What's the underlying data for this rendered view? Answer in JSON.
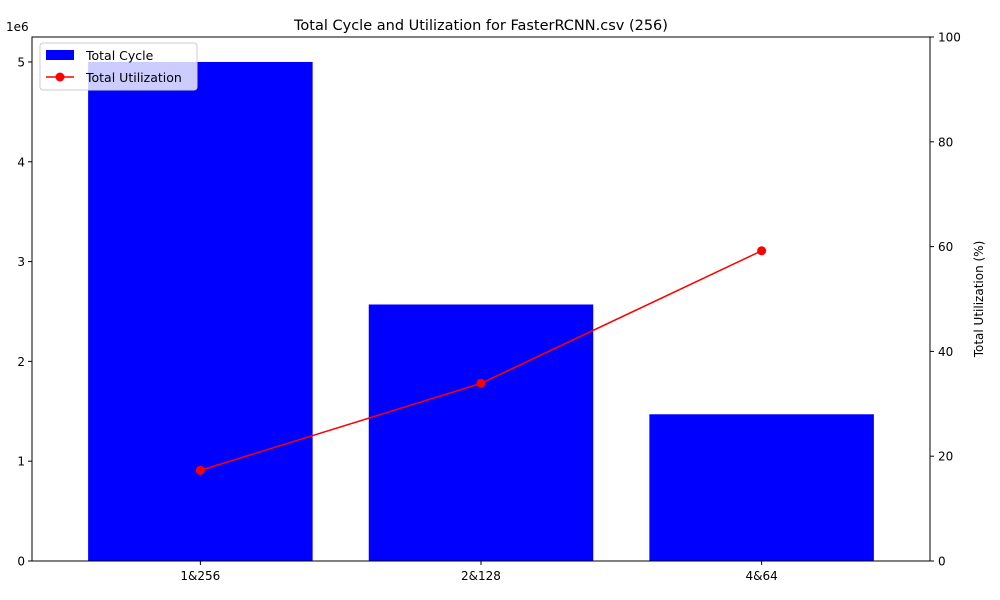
{
  "chart_data": {
    "type": "bar",
    "title": "Total Cycle and Utilization for FasterRCNN.csv (256)",
    "categories": [
      "1&256",
      "2&128",
      "4&64"
    ],
    "series": [
      {
        "name": "Total Cycle",
        "type": "bar",
        "axis": "left",
        "color": "#0000ff",
        "values": [
          5000000,
          2570000,
          1470000
        ]
      },
      {
        "name": "Total Utilization",
        "type": "line",
        "axis": "right",
        "color": "#ff0000",
        "marker": "circle",
        "values": [
          17.3,
          33.9,
          59.2
        ]
      }
    ],
    "left_axis": {
      "label": "",
      "ylim": [
        0,
        5250000
      ],
      "ticks": [
        0,
        1000000,
        2000000,
        3000000,
        4000000,
        5000000
      ],
      "tick_labels": [
        "0",
        "1",
        "2",
        "3",
        "4",
        "5"
      ],
      "offset_text": "1e6"
    },
    "right_axis": {
      "label": "Total Utilization (%)",
      "ylim": [
        0,
        100
      ],
      "ticks": [
        0,
        20,
        40,
        60,
        80,
        100
      ],
      "tick_labels": [
        "0",
        "20",
        "40",
        "60",
        "80",
        "100"
      ]
    },
    "grid": false,
    "legend_position": "top-left"
  }
}
